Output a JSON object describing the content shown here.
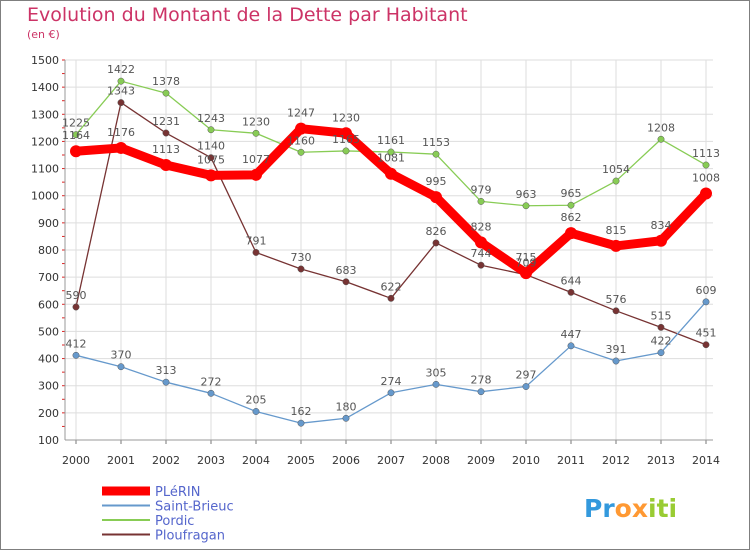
{
  "chart_data": {
    "type": "line",
    "title": "Evolution du Montant de la Dette par Habitant",
    "subtitle": "(en €)",
    "xlabel": "",
    "ylabel": "",
    "x": [
      "2000",
      "2001",
      "2002",
      "2003",
      "2004",
      "2005",
      "2006",
      "2007",
      "2008",
      "2009",
      "2010",
      "2011",
      "2012",
      "2013",
      "2014"
    ],
    "ylim": [
      100,
      1500
    ],
    "yticks": [
      "100",
      "200",
      "300",
      "400",
      "500",
      "600",
      "700",
      "800",
      "900",
      "1000",
      "1100",
      "1200",
      "1300",
      "1400",
      "1500"
    ],
    "grid": true,
    "legend_position": "bottom-left",
    "series": [
      {
        "name": "PLéRIN",
        "color": "#ff0000",
        "labels": [
          "1164",
          "1176",
          "1113",
          "1075",
          "1077",
          "1247",
          "1230",
          "1081",
          "995",
          "828",
          "715",
          "862",
          "815",
          "834",
          "1008"
        ],
        "values": [
          1164,
          1176,
          1113,
          1075,
          1077,
          1247,
          1230,
          1081,
          995,
          828,
          715,
          862,
          815,
          834,
          1008
        ]
      },
      {
        "name": "Saint-Brieuc",
        "color": "#6699cc",
        "labels": [
          "412",
          "370",
          "313",
          "272",
          "205",
          "162",
          "180",
          "274",
          "305",
          "278",
          "297",
          "447",
          "391",
          "422",
          "609"
        ],
        "values": [
          412,
          370,
          313,
          272,
          205,
          162,
          180,
          274,
          305,
          278,
          297,
          447,
          391,
          422,
          609
        ]
      },
      {
        "name": "Pordic",
        "color": "#88cc55",
        "labels": [
          "1225",
          "1422",
          "1378",
          "1243",
          "1230",
          "1160",
          "1165",
          "1161",
          "1153",
          "979",
          "963",
          "965",
          "1054",
          "1208",
          "1113"
        ],
        "values": [
          1225,
          1422,
          1378,
          1243,
          1230,
          1160,
          1165,
          1161,
          1153,
          979,
          963,
          965,
          1054,
          1208,
          1113
        ]
      },
      {
        "name": "Ploufragan",
        "color": "#773333",
        "labels": [
          "590",
          "1343",
          "1231",
          "1140",
          "791",
          "730",
          "683",
          "622",
          "826",
          "744",
          "709",
          "644",
          "576",
          "515",
          "451"
        ],
        "values": [
          590,
          1343,
          1231,
          1140,
          791,
          730,
          683,
          622,
          826,
          744,
          709,
          644,
          576,
          515,
          451
        ]
      }
    ]
  },
  "brand": {
    "text": "Proxiti",
    "letters": [
      "P",
      "r",
      "o",
      "x",
      "i",
      "t",
      "i"
    ],
    "colors": [
      "#3399dd",
      "#3399dd",
      "#ff9933",
      "#ff9933",
      "#99cc33",
      "#99cc33",
      "#99cc33"
    ]
  }
}
